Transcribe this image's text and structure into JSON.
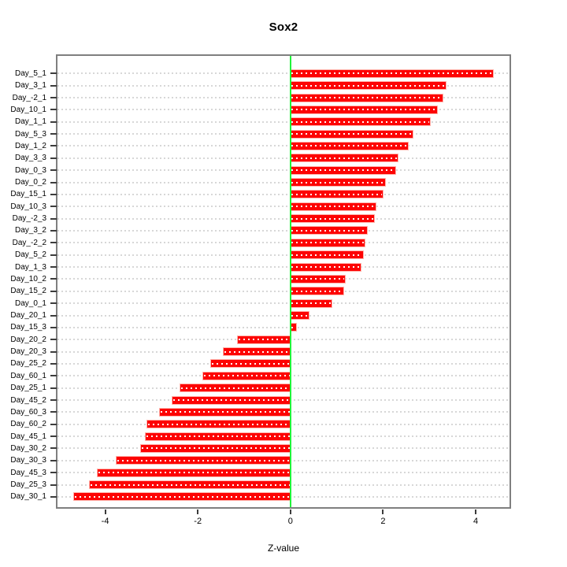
{
  "chart_data": {
    "type": "bar",
    "orientation": "horizontal",
    "title": "Sox2",
    "xlabel": "Z-value",
    "ylabel": "",
    "xlim": [
      -5.03,
      4.73
    ],
    "xticks": [
      -4,
      -2,
      0,
      2,
      4
    ],
    "zero_line_at": 0,
    "grid": true,
    "legend": "none",
    "categories": [
      "Day_5_1",
      "Day_3_1",
      "Day_-2_1",
      "Day_10_1",
      "Day_1_1",
      "Day_5_3",
      "Day_1_2",
      "Day_3_3",
      "Day_0_3",
      "Day_0_2",
      "Day_15_1",
      "Day_10_3",
      "Day_-2_3",
      "Day_3_2",
      "Day_-2_2",
      "Day_5_2",
      "Day_1_3",
      "Day_10_2",
      "Day_15_2",
      "Day_0_1",
      "Day_20_1",
      "Day_15_3",
      "Day_20_2",
      "Day_20_3",
      "Day_25_2",
      "Day_60_1",
      "Day_25_1",
      "Day_45_2",
      "Day_60_3",
      "Day_60_2",
      "Day_45_1",
      "Day_30_2",
      "Day_30_3",
      "Day_45_3",
      "Day_25_3",
      "Day_30_1"
    ],
    "values": [
      4.38,
      3.35,
      3.28,
      3.16,
      3.01,
      2.64,
      2.53,
      2.32,
      2.27,
      2.05,
      1.99,
      1.84,
      1.81,
      1.65,
      1.6,
      1.56,
      1.51,
      1.17,
      1.14,
      0.89,
      0.39,
      0.13,
      -1.13,
      -1.45,
      -1.71,
      -1.88,
      -2.37,
      -2.54,
      -2.82,
      -3.1,
      -3.12,
      -3.23,
      -3.75,
      -4.17,
      -4.33,
      -4.67
    ],
    "colors": {
      "bar": "#fd0303",
      "bar_dash": "#ffffff",
      "zero_line": "#21f33a",
      "grid_line": "#d7d7d7",
      "box_border": "#7f7f7f",
      "text": "#000000"
    }
  }
}
